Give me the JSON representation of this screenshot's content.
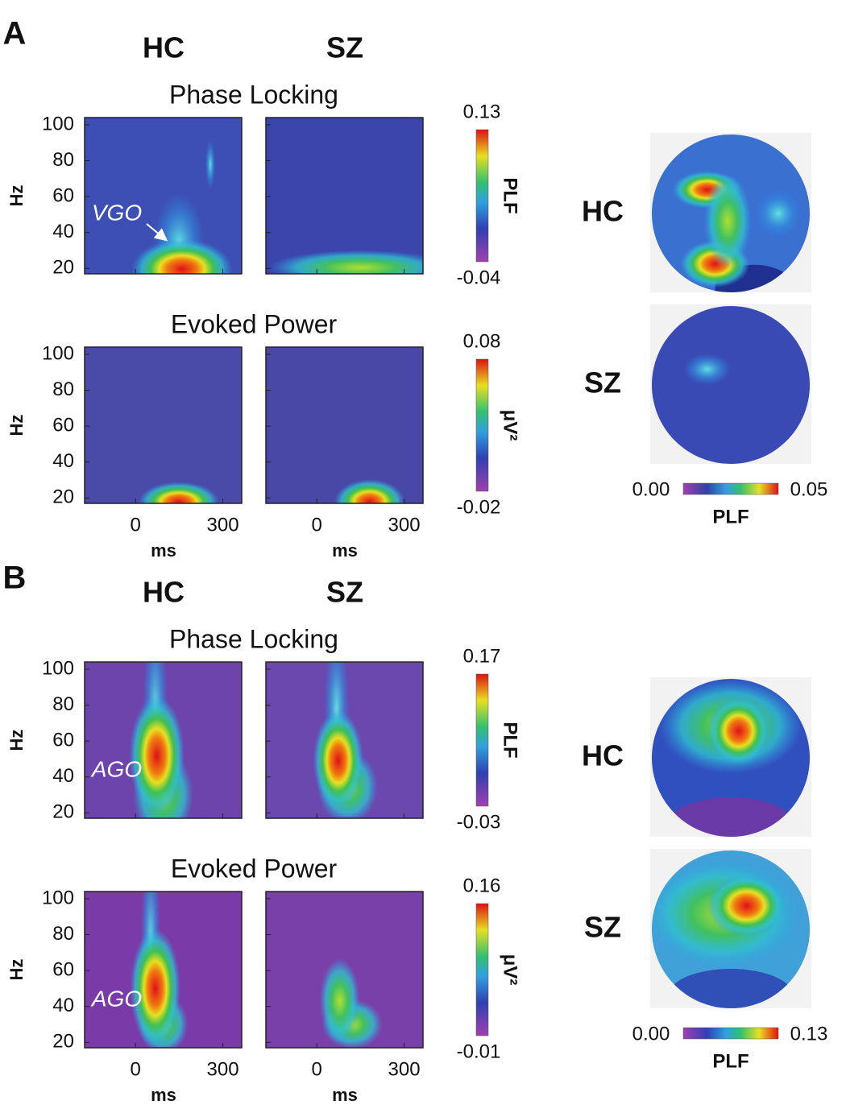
{
  "figure": {
    "panels": [
      {
        "label": "A",
        "columns": [
          "HC",
          "SZ"
        ],
        "xlabel": "ms",
        "ylabel": "Hz",
        "xlim": [
          -175,
          365
        ],
        "ylim": [
          17,
          104
        ],
        "xticks": [
          0,
          300
        ],
        "yticks": [
          100,
          80,
          60,
          40,
          20
        ],
        "rows": [
          {
            "title": "Phase Locking",
            "annotation": "VGO",
            "colorbar": {
              "label": "PLF",
              "max": 0.13,
              "min": -0.04
            }
          },
          {
            "title": "Evoked Power",
            "colorbar": {
              "label": "μV²",
              "max": 0.08,
              "min": -0.02
            }
          }
        ],
        "topomap": {
          "rows": [
            "HC",
            "SZ"
          ],
          "scale_label": "PLF",
          "min": {
            "value": 0,
            "label": "0.00"
          },
          "max": 0.05
        }
      },
      {
        "label": "B",
        "columns": [
          "HC",
          "SZ"
        ],
        "xlabel": "ms",
        "ylabel": "Hz",
        "xlim": [
          -175,
          365
        ],
        "ylim": [
          17,
          104
        ],
        "xticks": [
          0,
          300
        ],
        "yticks": [
          100,
          80,
          60,
          40,
          20
        ],
        "rows": [
          {
            "title": "Phase Locking",
            "annotation": "AGO",
            "colorbar": {
              "label": "PLF",
              "max": 0.17,
              "min": -0.03
            }
          },
          {
            "title": "Evoked Power",
            "annotation": "AGO",
            "colorbar": {
              "label": "μV²",
              "max": 0.16,
              "min": -0.01
            }
          }
        ],
        "topomap": {
          "rows": [
            "HC",
            "SZ"
          ],
          "scale_label": "PLF",
          "min": {
            "value": 0,
            "label": "0.00"
          },
          "max": 0.13
        }
      }
    ]
  }
}
